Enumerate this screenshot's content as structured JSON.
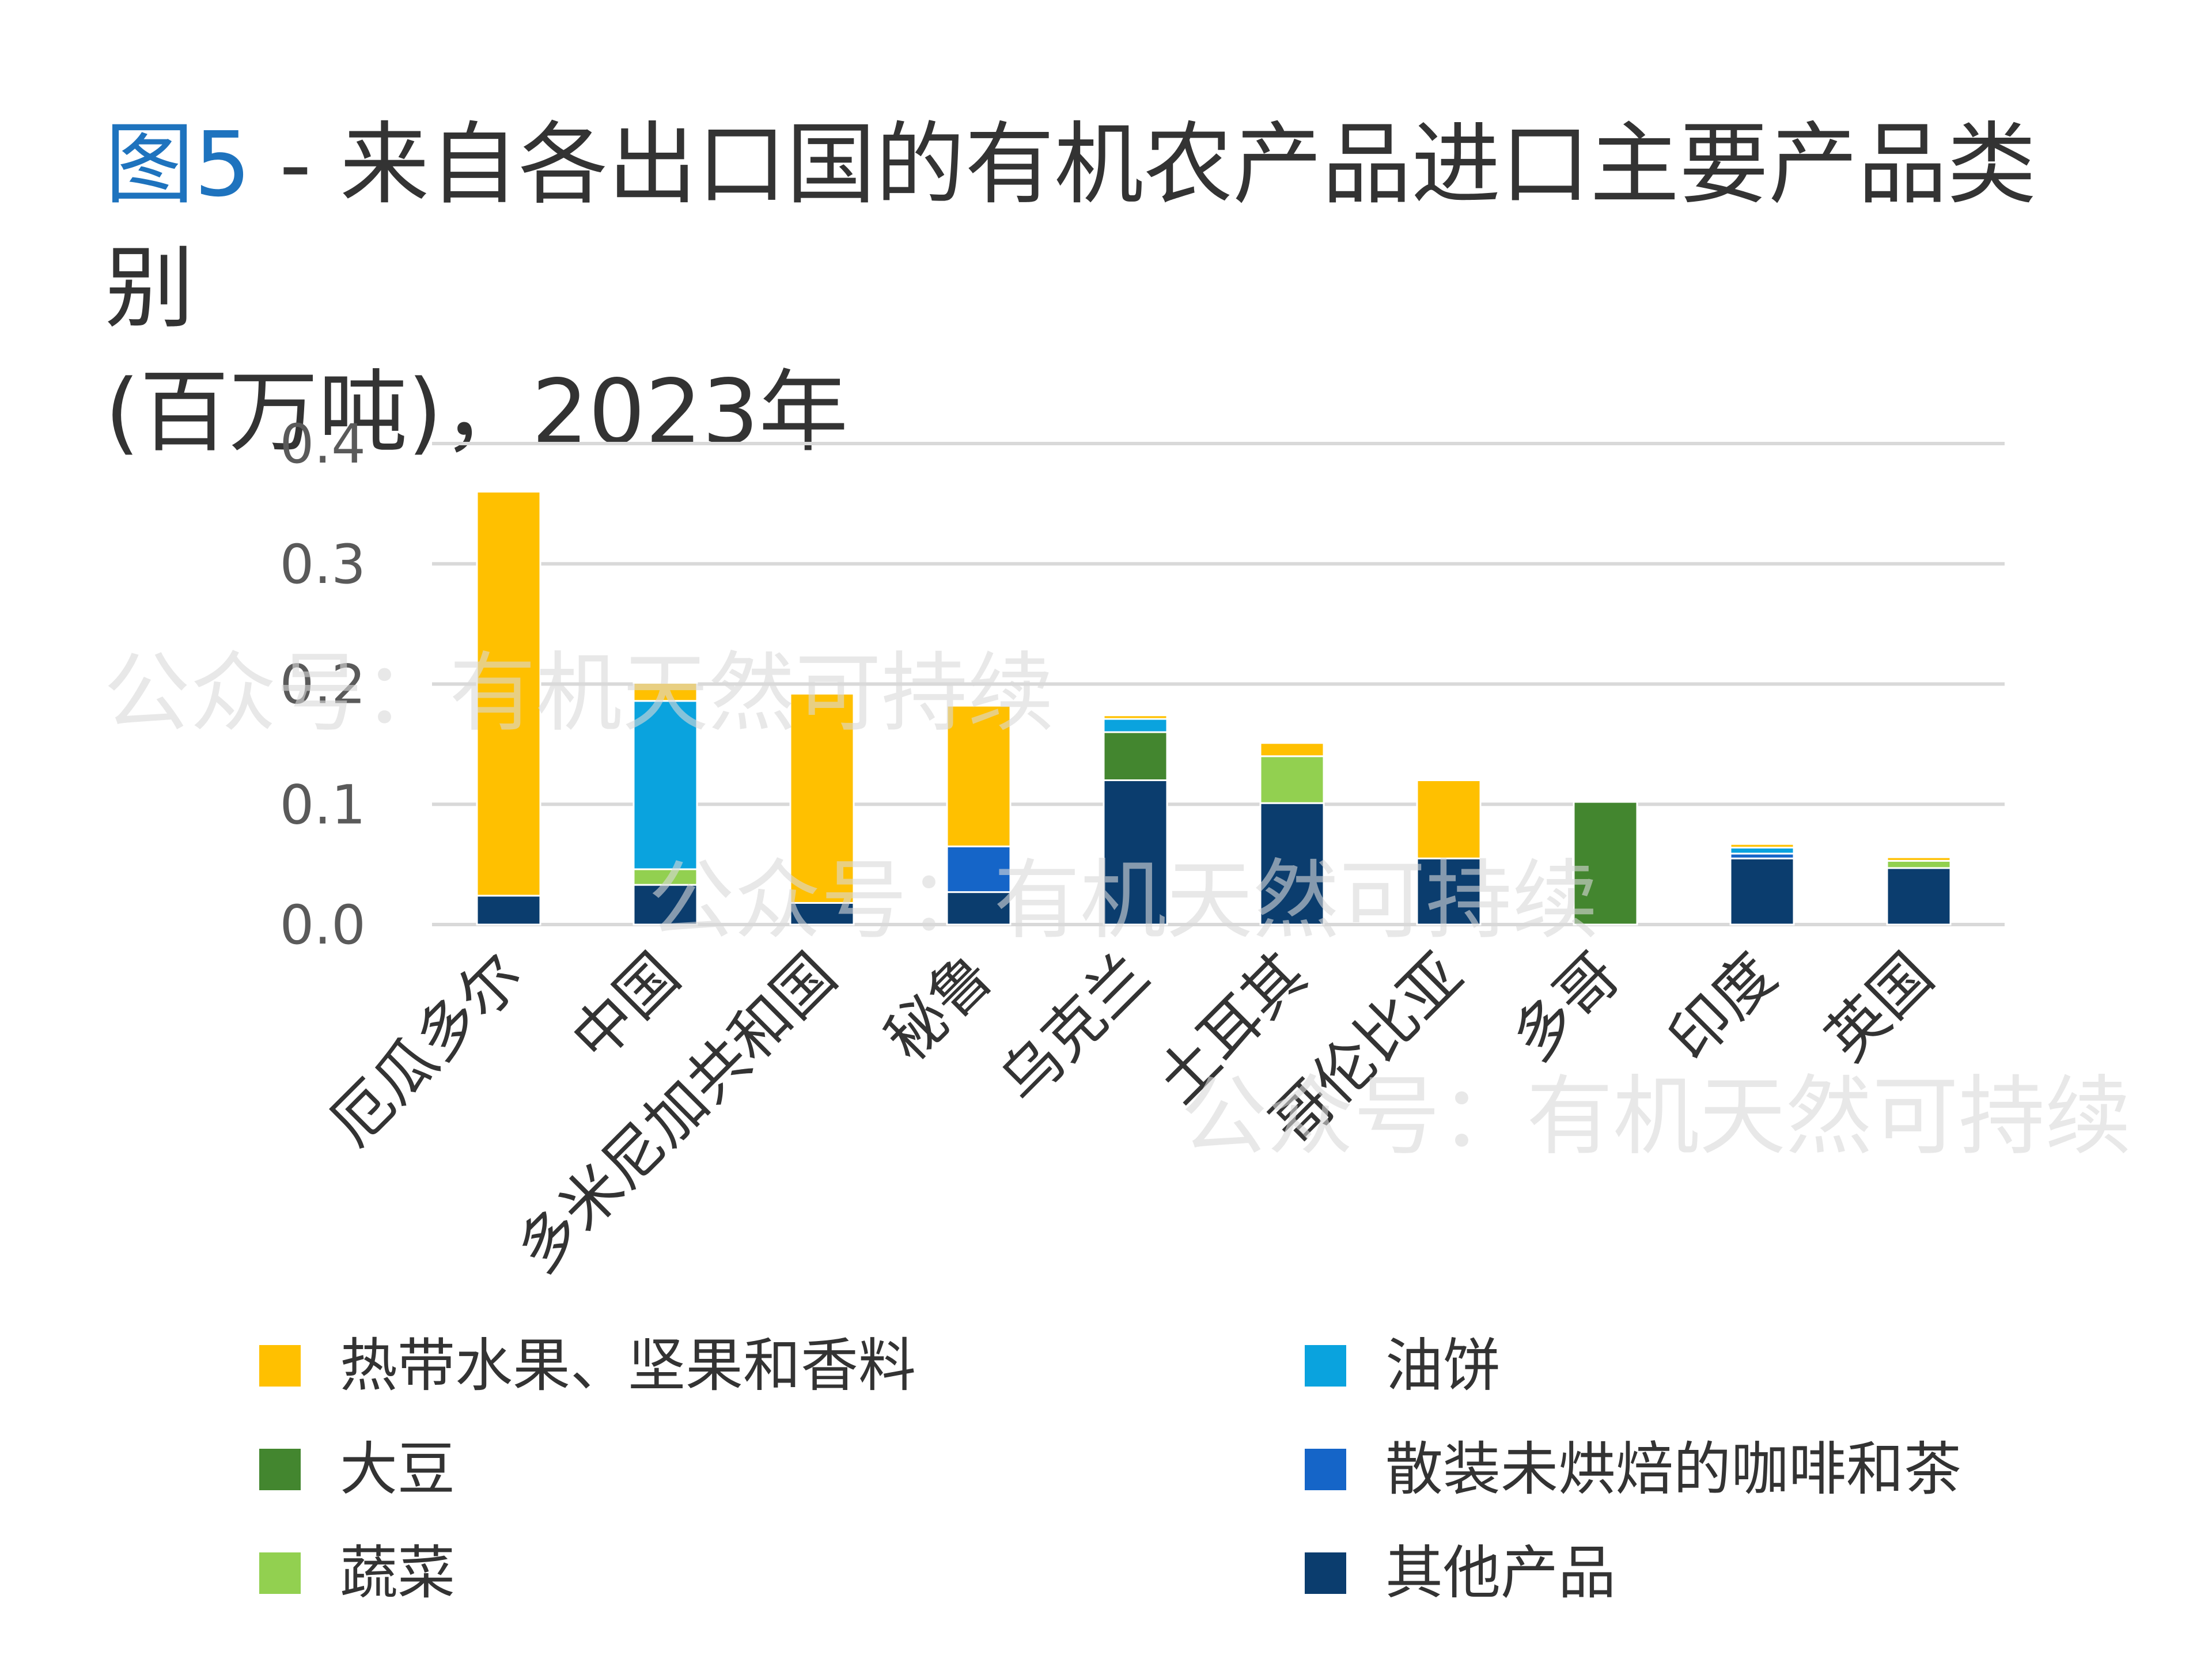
{
  "title": {
    "figure_label": "图5",
    "text": " - 来自各出口国的有机农产品进口主要产品类别",
    "line2": "(百万吨)，2023年"
  },
  "watermark": "公众号：有机天然可持续",
  "colors": {
    "tropical": "#FFC000",
    "oilcake": "#0AA3DE",
    "soy": "#43862F",
    "coffee": "#1565C8",
    "veg": "#92D050",
    "other": "#0B3D6E",
    "grid": "#d9d9d9"
  },
  "chart_data": {
    "type": "bar",
    "stacked": true,
    "title": "图5 - 来自各出口国的有机农产品进口主要产品类别 (百万吨)，2023年",
    "xlabel": "",
    "ylabel": "",
    "ylim": [
      0,
      0.4
    ],
    "yticks": [
      "0.0",
      "0.1",
      "0.2",
      "0.3",
      "0.4"
    ],
    "grid": true,
    "legend_position": "bottom",
    "categories": [
      "厄瓜多尔",
      "中国",
      "多米尼加共和国",
      "秘鲁",
      "乌克兰",
      "土耳其",
      "哥伦比亚",
      "多哥",
      "印度",
      "英国"
    ],
    "series": [
      {
        "key": "other",
        "name": "其他产品",
        "values": [
          0.024,
          0.033,
          0.018,
          0.027,
          0.12,
          0.101,
          0.055,
          0.0,
          0.055,
          0.047
        ]
      },
      {
        "key": "veg",
        "name": "蔬菜",
        "values": [
          0.0,
          0.013,
          0.0,
          0.0,
          0.0,
          0.039,
          0.0,
          0.0,
          0.0,
          0.006
        ]
      },
      {
        "key": "coffee",
        "name": "散装未烘焙的咖啡和茶",
        "values": [
          0.0,
          0.0,
          0.0,
          0.038,
          0.0,
          0.0,
          0.0,
          0.0,
          0.004,
          0.0
        ]
      },
      {
        "key": "soy",
        "name": "大豆",
        "values": [
          0.0,
          0.0,
          0.0,
          0.0,
          0.04,
          0.0,
          0.0,
          0.102,
          0.0,
          0.0
        ]
      },
      {
        "key": "oilcake",
        "name": "油饼",
        "values": [
          0.0,
          0.14,
          0.0,
          0.0,
          0.011,
          0.0,
          0.0,
          0.0,
          0.005,
          0.0
        ]
      },
      {
        "key": "tropical",
        "name": "热带水果、坚果和香料",
        "values": [
          0.336,
          0.015,
          0.174,
          0.117,
          0.003,
          0.011,
          0.065,
          0.0,
          0.003,
          0.003
        ]
      }
    ],
    "legend": [
      {
        "key": "tropical",
        "label": "热带水果、坚果和香料"
      },
      {
        "key": "oilcake",
        "label": "油饼"
      },
      {
        "key": "soy",
        "label": "大豆"
      },
      {
        "key": "coffee",
        "label": "散装未烘焙的咖啡和茶"
      },
      {
        "key": "veg",
        "label": "蔬菜"
      },
      {
        "key": "other",
        "label": "其他产品"
      }
    ]
  }
}
